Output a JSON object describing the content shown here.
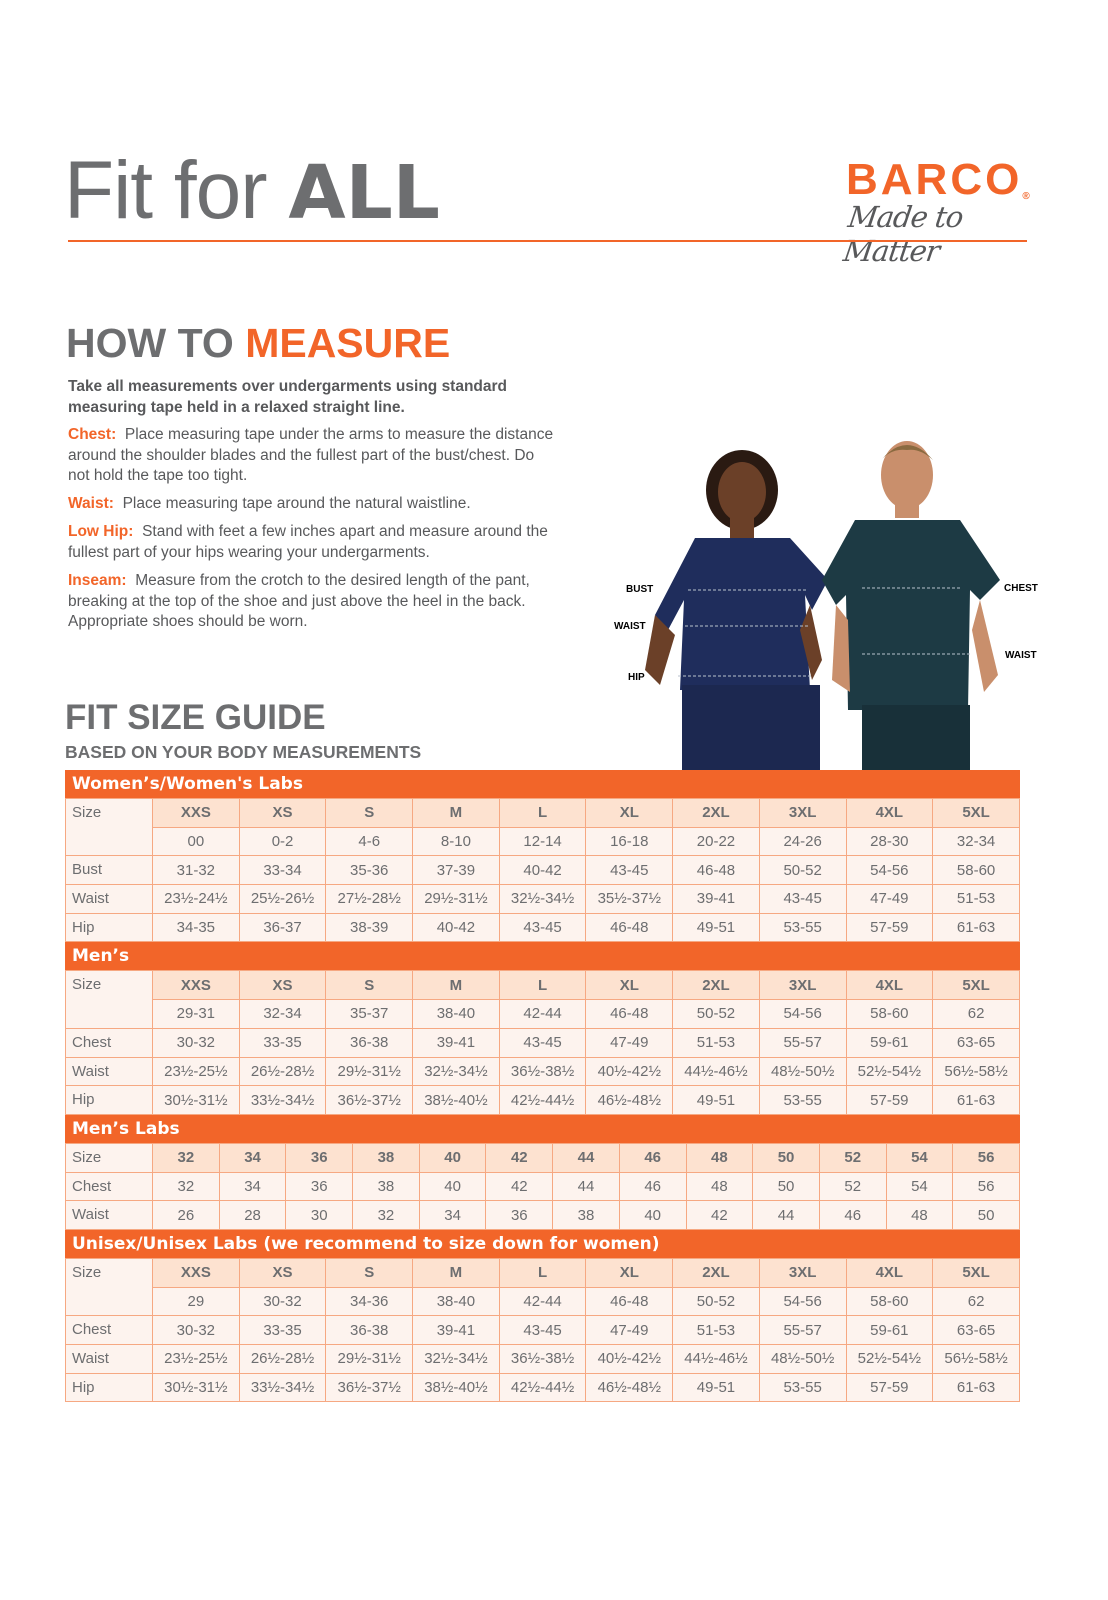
{
  "header": {
    "title_regular": "Fit for ",
    "title_bold": "ALL",
    "logo_brand": "BARCO",
    "logo_tagline": "Made to Matter",
    "logo_registered": "®"
  },
  "how_to_measure": {
    "heading_gray": "HOW TO ",
    "heading_orange": "MEASURE",
    "intro": "Take all measurements over undergarments using standard measuring tape held in a relaxed straight line.",
    "items": [
      {
        "label": "Chest:",
        "text": "Place measuring tape under the arms to measure the distance around the shoulder blades and the fullest part of the bust/chest. Do not hold the tape too tight."
      },
      {
        "label": "Waist:",
        "text": "Place measuring tape around the natural waistline."
      },
      {
        "label": "Low Hip:",
        "text": "Stand with feet a few inches apart and measure around the fullest part of your hips wearing your undergarments."
      },
      {
        "label": "Inseam:",
        "text": "Measure from the crotch to the desired length of the pant, breaking at the top of the shoe and just above the heel in the back. Appropriate shoes should be worn."
      }
    ]
  },
  "figure": {
    "women_labels": [
      "BUST",
      "WAIST",
      "HIP"
    ],
    "men_labels": [
      "CHEST",
      "WAIST"
    ],
    "colors": {
      "women_scrubs": "#1f2d5c",
      "men_scrubs": "#1d3a44"
    }
  },
  "guide": {
    "heading": "FIT SIZE GUIDE",
    "subheading": "BASED ON YOUR BODY MEASUREMENTS"
  },
  "colors": {
    "accent": "#f26529",
    "header_cell": "#fde2d0",
    "body_cell": "#fdf3ee",
    "text": "#6d6e70"
  },
  "tables": [
    {
      "title": "Women’s/Women's Labs",
      "sizes": [
        "XXS",
        "XS",
        "S",
        "M",
        "L",
        "XL",
        "2XL",
        "3XL",
        "4XL",
        "5XL"
      ],
      "size_label": "Size",
      "numeric": [
        "00",
        "0-2",
        "4-6",
        "8-10",
        "12-14",
        "16-18",
        "20-22",
        "24-26",
        "28-30",
        "32-34"
      ],
      "rows": [
        {
          "label": "Bust",
          "values": [
            "31-32",
            "33-34",
            "35-36",
            "37-39",
            "40-42",
            "43-45",
            "46-48",
            "50-52",
            "54-56",
            "58-60"
          ]
        },
        {
          "label": "Waist",
          "values": [
            "23½-24½",
            "25½-26½",
            "27½-28½",
            "29½-31½",
            "32½-34½",
            "35½-37½",
            "39-41",
            "43-45",
            "47-49",
            "51-53"
          ]
        },
        {
          "label": "Hip",
          "values": [
            "34-35",
            "36-37",
            "38-39",
            "40-42",
            "43-45",
            "46-48",
            "49-51",
            "53-55",
            "57-59",
            "61-63"
          ]
        }
      ]
    },
    {
      "title": "Men’s",
      "sizes": [
        "XXS",
        "XS",
        "S",
        "M",
        "L",
        "XL",
        "2XL",
        "3XL",
        "4XL",
        "5XL"
      ],
      "size_label": "Size",
      "numeric": [
        "29-31",
        "32-34",
        "35-37",
        "38-40",
        "42-44",
        "46-48",
        "50-52",
        "54-56",
        "58-60",
        "62"
      ],
      "rows": [
        {
          "label": "Chest",
          "values": [
            "30-32",
            "33-35",
            "36-38",
            "39-41",
            "43-45",
            "47-49",
            "51-53",
            "55-57",
            "59-61",
            "63-65"
          ]
        },
        {
          "label": "Waist",
          "values": [
            "23½-25½",
            "26½-28½",
            "29½-31½",
            "32½-34½",
            "36½-38½",
            "40½-42½",
            "44½-46½",
            "48½-50½",
            "52½-54½",
            "56½-58½"
          ]
        },
        {
          "label": "Hip",
          "values": [
            "30½-31½",
            "33½-34½",
            "36½-37½",
            "38½-40½",
            "42½-44½",
            "46½-48½",
            "49-51",
            "53-55",
            "57-59",
            "61-63"
          ]
        }
      ]
    },
    {
      "title": "Men’s Labs",
      "sizes": [
        "32",
        "34",
        "36",
        "38",
        "40",
        "42",
        "44",
        "46",
        "48",
        "50",
        "52",
        "54",
        "56"
      ],
      "size_label": "Size",
      "rows": [
        {
          "label": "Chest",
          "values": [
            "32",
            "34",
            "36",
            "38",
            "40",
            "42",
            "44",
            "46",
            "48",
            "50",
            "52",
            "54",
            "56"
          ]
        },
        {
          "label": "Waist",
          "values": [
            "26",
            "28",
            "30",
            "32",
            "34",
            "36",
            "38",
            "40",
            "42",
            "44",
            "46",
            "48",
            "50"
          ]
        }
      ]
    },
    {
      "title": "Unisex/Unisex Labs (we recommend to size down for women)",
      "sizes": [
        "XXS",
        "XS",
        "S",
        "M",
        "L",
        "XL",
        "2XL",
        "3XL",
        "4XL",
        "5XL"
      ],
      "size_label": "Size",
      "numeric": [
        "29",
        "30-32",
        "34-36",
        "38-40",
        "42-44",
        "46-48",
        "50-52",
        "54-56",
        "58-60",
        "62"
      ],
      "rows": [
        {
          "label": "Chest",
          "values": [
            "30-32",
            "33-35",
            "36-38",
            "39-41",
            "43-45",
            "47-49",
            "51-53",
            "55-57",
            "59-61",
            "63-65"
          ]
        },
        {
          "label": "Waist",
          "values": [
            "23½-25½",
            "26½-28½",
            "29½-31½",
            "32½-34½",
            "36½-38½",
            "40½-42½",
            "44½-46½",
            "48½-50½",
            "52½-54½",
            "56½-58½"
          ]
        },
        {
          "label": "Hip",
          "values": [
            "30½-31½",
            "33½-34½",
            "36½-37½",
            "38½-40½",
            "42½-44½",
            "46½-48½",
            "49-51",
            "53-55",
            "57-59",
            "61-63"
          ]
        }
      ]
    }
  ]
}
